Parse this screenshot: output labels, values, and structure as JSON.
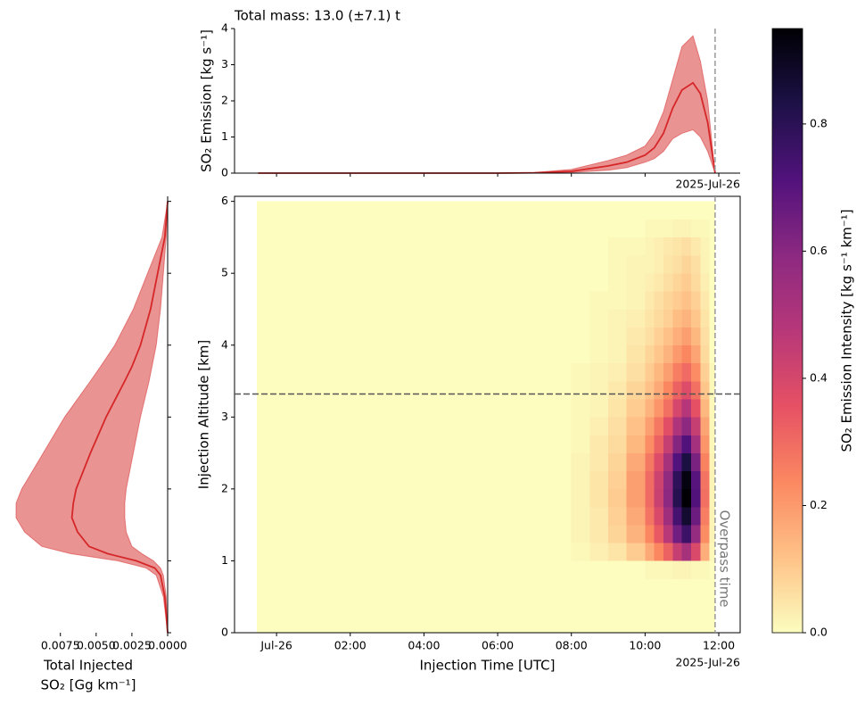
{
  "chart_data": [
    {
      "type": "line",
      "title": "Total mass: 13.0 (±7.1) t",
      "ylabel": "SO₂ Emission [kg s⁻¹]",
      "x": [
        -0.5,
        2,
        4,
        6,
        7,
        8,
        9,
        9.5,
        10,
        10.25,
        10.5,
        10.75,
        11,
        11.3,
        11.5,
        11.7,
        11.9
      ],
      "values": [
        0,
        0,
        0,
        0,
        0.01,
        0.05,
        0.2,
        0.3,
        0.5,
        0.7,
        1.1,
        1.8,
        2.3,
        2.5,
        2.2,
        1.4,
        0
      ],
      "upper": [
        0,
        0,
        0,
        0,
        0.02,
        0.1,
        0.35,
        0.5,
        0.75,
        1.1,
        1.7,
        2.6,
        3.5,
        3.8,
        3.1,
        2.0,
        0
      ],
      "lower": [
        0,
        0,
        0,
        0,
        0,
        0.02,
        0.08,
        0.15,
        0.3,
        0.4,
        0.6,
        0.95,
        1.1,
        1.2,
        1.0,
        0.6,
        0
      ],
      "color": "#d62728",
      "xlim": [
        -1.14,
        12.58
      ],
      "ylim": [
        0,
        4
      ],
      "yticks": [
        0,
        1,
        2,
        3,
        4
      ],
      "vline": 11.9,
      "x_offset_label": "2025-Jul-26"
    },
    {
      "type": "heatmap",
      "xlabel": "Injection Time [UTC]",
      "ylabel": "Injection Altitude [km]",
      "x_edges": [
        -0.53,
        8,
        8.5,
        9,
        9.5,
        10,
        10.25,
        10.5,
        10.75,
        11,
        11.25,
        11.5,
        11.75,
        11.9
      ],
      "y_edges": [
        0,
        0.25,
        0.5,
        0.75,
        1,
        1.25,
        1.5,
        1.75,
        2,
        2.25,
        2.5,
        2.75,
        3,
        3.25,
        3.5,
        3.75,
        4,
        4.25,
        4.5,
        4.75,
        5,
        5.25,
        5.5,
        5.75,
        6
      ],
      "z": [
        [
          0,
          0,
          0,
          0,
          0,
          0,
          0,
          0,
          0,
          0,
          0,
          0,
          0
        ],
        [
          0,
          0,
          0,
          0,
          0,
          0,
          0,
          0,
          0,
          0,
          0,
          0,
          0
        ],
        [
          0,
          0,
          0,
          0,
          0,
          0,
          0,
          0,
          0,
          0,
          0,
          0,
          0
        ],
        [
          0,
          0,
          0,
          0,
          0,
          0.01,
          0.01,
          0.01,
          0.02,
          0.02,
          0.01,
          0.01,
          0
        ],
        [
          0,
          0.01,
          0.03,
          0.05,
          0.1,
          0.17,
          0.24,
          0.32,
          0.44,
          0.52,
          0.39,
          0.16,
          0.01
        ],
        [
          0,
          0.02,
          0.04,
          0.08,
          0.15,
          0.24,
          0.34,
          0.47,
          0.65,
          0.76,
          0.57,
          0.23,
          0.02
        ],
        [
          0,
          0.02,
          0.04,
          0.09,
          0.17,
          0.28,
          0.39,
          0.54,
          0.74,
          0.87,
          0.66,
          0.26,
          0.02
        ],
        [
          0,
          0.02,
          0.05,
          0.1,
          0.19,
          0.3,
          0.43,
          0.59,
          0.81,
          0.95,
          0.71,
          0.29,
          0.02
        ],
        [
          0,
          0.02,
          0.05,
          0.09,
          0.19,
          0.3,
          0.42,
          0.58,
          0.79,
          0.93,
          0.7,
          0.28,
          0.02
        ],
        [
          0,
          0.02,
          0.04,
          0.08,
          0.17,
          0.27,
          0.38,
          0.52,
          0.71,
          0.84,
          0.63,
          0.25,
          0.02
        ],
        [
          0,
          0.01,
          0.04,
          0.07,
          0.14,
          0.23,
          0.32,
          0.44,
          0.61,
          0.71,
          0.53,
          0.21,
          0.01
        ],
        [
          0,
          0.01,
          0.03,
          0.06,
          0.12,
          0.19,
          0.27,
          0.37,
          0.5,
          0.59,
          0.44,
          0.18,
          0.01
        ],
        [
          0,
          0.01,
          0.02,
          0.05,
          0.1,
          0.15,
          0.21,
          0.29,
          0.4,
          0.48,
          0.36,
          0.14,
          0.01
        ],
        [
          0,
          0.01,
          0.02,
          0.04,
          0.08,
          0.12,
          0.17,
          0.24,
          0.32,
          0.38,
          0.29,
          0.11,
          0.01
        ],
        [
          0,
          0.01,
          0.02,
          0.03,
          0.06,
          0.1,
          0.14,
          0.19,
          0.26,
          0.3,
          0.23,
          0.09,
          0.01
        ],
        [
          0,
          0,
          0.01,
          0.02,
          0.05,
          0.08,
          0.11,
          0.15,
          0.2,
          0.24,
          0.18,
          0.07,
          0
        ],
        [
          0,
          0,
          0.01,
          0.02,
          0.04,
          0.06,
          0.09,
          0.12,
          0.16,
          0.19,
          0.14,
          0.06,
          0
        ],
        [
          0,
          0,
          0.01,
          0.02,
          0.03,
          0.05,
          0.07,
          0.09,
          0.13,
          0.15,
          0.11,
          0.05,
          0
        ],
        [
          0,
          0,
          0.01,
          0.01,
          0.02,
          0.04,
          0.06,
          0.08,
          0.1,
          0.12,
          0.09,
          0.04,
          0
        ],
        [
          0,
          0,
          0,
          0.01,
          0.02,
          0.03,
          0.04,
          0.06,
          0.08,
          0.1,
          0.07,
          0.03,
          0
        ],
        [
          0,
          0,
          0,
          0.01,
          0.02,
          0.02,
          0.03,
          0.05,
          0.06,
          0.08,
          0.06,
          0.02,
          0
        ],
        [
          0,
          0,
          0,
          0.01,
          0.01,
          0.02,
          0.03,
          0.04,
          0.05,
          0.06,
          0.04,
          0.02,
          0
        ],
        [
          0,
          0,
          0,
          0,
          0,
          0.01,
          0.01,
          0.01,
          0.02,
          0.02,
          0.01,
          0.01,
          0
        ],
        [
          0,
          0,
          0,
          0,
          0,
          0,
          0,
          0,
          0,
          0,
          0,
          0,
          0
        ]
      ],
      "xlim": [
        -1.14,
        12.58
      ],
      "ylim": [
        0,
        6.07
      ],
      "xticks": [
        {
          "value": 0,
          "label": "Jul-26"
        },
        {
          "value": 2,
          "label": "02:00"
        },
        {
          "value": 4,
          "label": "04:00"
        },
        {
          "value": 6,
          "label": "06:00"
        },
        {
          "value": 8,
          "label": "08:00"
        },
        {
          "value": 10,
          "label": "10:00"
        },
        {
          "value": 12,
          "label": "12:00"
        }
      ],
      "yticks": [
        0,
        1,
        2,
        3,
        4,
        5,
        6
      ],
      "x_offset_label": "2025-Jul-26",
      "hline": 3.32,
      "overpass": {
        "value": 11.9,
        "label": "Overpass time"
      },
      "colorbar": {
        "label": "SO₂ Emission Intensity [kg s⁻¹ km⁻¹]",
        "clim": [
          0,
          0.95
        ],
        "ticks": [
          {
            "value": 0,
            "label": "0.0"
          },
          0.2,
          0.4,
          0.6,
          0.8
        ],
        "colormap": [
          "#fcfdbf",
          "#fec287",
          "#fb8861",
          "#e65164",
          "#b73779",
          "#8c2981",
          "#51127c",
          "#1d1147",
          "#000004"
        ]
      }
    },
    {
      "type": "profile",
      "xlabel": [
        "Total Injected",
        "SO₂ [Gg km⁻¹]"
      ],
      "altitude": [
        0,
        0.5,
        0.8,
        0.9,
        1.0,
        1.1,
        1.2,
        1.4,
        1.6,
        1.8,
        2.0,
        2.2,
        2.5,
        3.0,
        3.5,
        3.7,
        4.0,
        4.5,
        5.0,
        5.5,
        6.0
      ],
      "values": [
        0,
        0.0002,
        0.0005,
        0.0009,
        0.0022,
        0.0042,
        0.0055,
        0.0063,
        0.0067,
        0.0066,
        0.0064,
        0.006,
        0.0054,
        0.0043,
        0.003,
        0.0025,
        0.0019,
        0.0012,
        0.0007,
        0.0002,
        0
      ],
      "upper": [
        0,
        0.0003,
        0.0008,
        0.0015,
        0.0035,
        0.0068,
        0.0088,
        0.01,
        0.0106,
        0.0106,
        0.0102,
        0.0096,
        0.0087,
        0.0072,
        0.0054,
        0.0047,
        0.0037,
        0.0024,
        0.0014,
        0.0004,
        0
      ],
      "lower": [
        0,
        0.0001,
        0.0003,
        0.0005,
        0.001,
        0.0018,
        0.0025,
        0.0029,
        0.003,
        0.003,
        0.0029,
        0.0027,
        0.0024,
        0.0019,
        0.0013,
        0.0011,
        0.0008,
        0.0005,
        0.0003,
        0.0001,
        0
      ],
      "color": "#d62728",
      "xlim": [
        0.0111,
        0
      ],
      "ylim": [
        0,
        6.07
      ],
      "xticks": [
        {
          "value": 0.0075,
          "label": "0.0075"
        },
        {
          "value": 0.005,
          "label": "0.0050"
        },
        {
          "value": 0.0025,
          "label": "0.0025"
        },
        {
          "value": 0,
          "label": "0.0000"
        }
      ],
      "yticks": [
        0,
        1,
        2,
        3,
        4,
        5,
        6
      ]
    }
  ]
}
